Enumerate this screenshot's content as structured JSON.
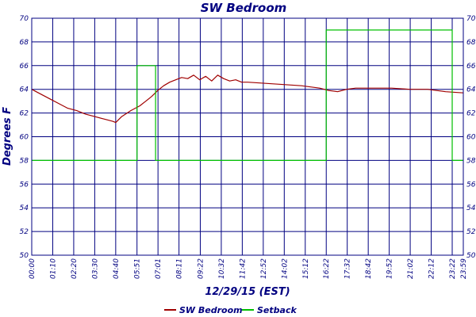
{
  "chart_data": {
    "type": "line",
    "title": "SW Bedroom",
    "xlabel": "12/29/15 (EST)",
    "ylabel": "Degrees F",
    "ylim": [
      50,
      70
    ],
    "yticks": [
      50,
      52,
      54,
      56,
      58,
      60,
      62,
      64,
      66,
      68,
      70
    ],
    "xlim": [
      "00:00",
      "23:59"
    ],
    "x_tick_labels": [
      "00:00",
      "01:10",
      "02:20",
      "03:30",
      "04:40",
      "05:51",
      "07:01",
      "08:11",
      "09:22",
      "10:32",
      "11:42",
      "12:52",
      "14:02",
      "15:12",
      "16:22",
      "17:32",
      "18:42",
      "19:52",
      "21:02",
      "22:12",
      "23:22",
      "23:59"
    ],
    "grid": true,
    "legend_position": "bottom",
    "series": [
      {
        "name": "SW Bedroom",
        "color": "#a00000",
        "x": [
          "00:00",
          "00:30",
          "01:00",
          "01:30",
          "02:00",
          "02:30",
          "03:00",
          "03:30",
          "04:00",
          "04:30",
          "04:40",
          "05:00",
          "05:30",
          "06:00",
          "06:20",
          "06:40",
          "07:00",
          "07:20",
          "07:40",
          "08:00",
          "08:20",
          "08:40",
          "09:00",
          "09:20",
          "09:40",
          "10:00",
          "10:20",
          "10:40",
          "11:00",
          "11:20",
          "11:40",
          "12:00",
          "13:00",
          "14:00",
          "15:00",
          "16:00",
          "16:30",
          "17:00",
          "17:30",
          "18:00",
          "19:00",
          "20:00",
          "21:00",
          "22:00",
          "23:00",
          "23:59"
        ],
        "values": [
          64.0,
          63.6,
          63.2,
          62.8,
          62.4,
          62.2,
          61.9,
          61.7,
          61.5,
          61.3,
          61.2,
          61.7,
          62.2,
          62.6,
          63.0,
          63.4,
          63.9,
          64.3,
          64.6,
          64.8,
          65.0,
          64.9,
          65.2,
          64.8,
          65.1,
          64.7,
          65.2,
          64.9,
          64.7,
          64.8,
          64.6,
          64.6,
          64.5,
          64.4,
          64.3,
          64.1,
          63.9,
          63.8,
          64.0,
          64.1,
          64.1,
          64.1,
          64.0,
          64.0,
          63.8,
          63.7
        ]
      },
      {
        "name": "Setback",
        "color": "#00c000",
        "step": true,
        "x": [
          "00:00",
          "05:51",
          "05:51",
          "06:53",
          "06:53",
          "16:22",
          "16:22",
          "23:22",
          "23:22",
          "23:59"
        ],
        "values": [
          58,
          58,
          66,
          66,
          58,
          58,
          69,
          69,
          58,
          58
        ]
      }
    ]
  }
}
